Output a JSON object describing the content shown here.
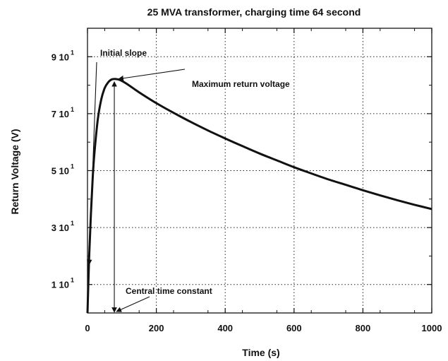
{
  "chart_data": {
    "type": "line",
    "title": "25 MVA transformer, charging time 64 second",
    "xlabel": "Time (s)",
    "ylabel": "Return Voltage (V)",
    "xlim": [
      0,
      1000
    ],
    "ylim": [
      0,
      100
    ],
    "grid": true,
    "x_ticks": [
      {
        "value": 0,
        "label": "0"
      },
      {
        "value": 200,
        "label": "200"
      },
      {
        "value": 400,
        "label": "400"
      },
      {
        "value": 600,
        "label": "600"
      },
      {
        "value": 800,
        "label": "800"
      },
      {
        "value": 1000,
        "label": "1000"
      }
    ],
    "y_ticks": [
      {
        "value": 10,
        "mantissa": "1 10",
        "exp": "1"
      },
      {
        "value": 30,
        "mantissa": "3 10",
        "exp": "1"
      },
      {
        "value": 50,
        "mantissa": "5 10",
        "exp": "1"
      },
      {
        "value": 70,
        "mantissa": "7 10",
        "exp": "1"
      },
      {
        "value": 90,
        "mantissa": "9 10",
        "exp": "1"
      }
    ],
    "series": [
      {
        "x": [
          0,
          5,
          10,
          15,
          20,
          30,
          40,
          50,
          60,
          70,
          80,
          90,
          100,
          120,
          150,
          200,
          250,
          300,
          350,
          400,
          450,
          500,
          550,
          600,
          650,
          700,
          750,
          800,
          850,
          900,
          950,
          1000
        ],
        "y": [
          0,
          20,
          35,
          47,
          56,
          68,
          75,
          79,
          81,
          82,
          82.2,
          82,
          81.5,
          80,
          77.5,
          73.7,
          70.3,
          67.1,
          64.1,
          61.3,
          58.6,
          56.0,
          53.6,
          51.2,
          49.0,
          46.9,
          45.0,
          43.1,
          41.3,
          39.6,
          38.0,
          36.5
        ]
      }
    ],
    "annotations": {
      "initial_slope": "Initial slope",
      "max_return_voltage": "Maximum  return voltage",
      "central_time_constant": "Central time constant"
    }
  }
}
